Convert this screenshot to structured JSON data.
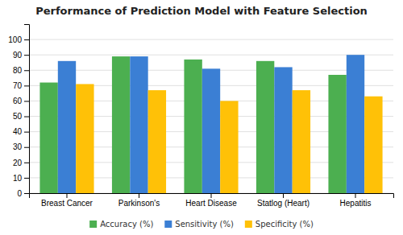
{
  "chart_data": {
    "type": "bar",
    "title": "Performance of Prediction Model with Feature Selection",
    "categories": [
      "Breast Cancer",
      "Parkinson's",
      "Heart Disease",
      "Statlog (Heart)",
      "Hepatitis"
    ],
    "series": [
      {
        "name": "Accuracy (%)",
        "color": "#4caf50",
        "values": [
          72,
          89,
          87,
          86,
          77
        ]
      },
      {
        "name": "Sensitivity (%)",
        "color": "#3b7fd4",
        "values": [
          86,
          89,
          81,
          82,
          90
        ]
      },
      {
        "name": "Specificity (%)",
        "color": "#ffc107",
        "values": [
          71,
          67,
          60,
          67,
          63
        ]
      }
    ],
    "ylim": [
      0,
      110
    ],
    "yticks": [
      0,
      10,
      20,
      30,
      40,
      50,
      60,
      70,
      80,
      90,
      100
    ],
    "grid": true,
    "legend": "bottom"
  }
}
